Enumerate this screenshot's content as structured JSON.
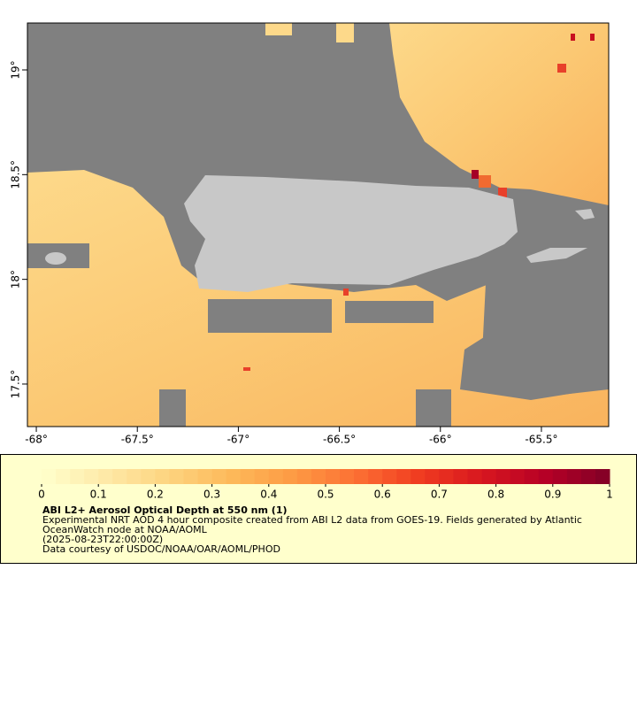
{
  "map": {
    "xlim": [
      -68.044,
      -65.167
    ],
    "ylim": [
      17.297,
      19.224
    ],
    "xticks": [
      {
        "value": -68,
        "label": "-68°"
      },
      {
        "value": -67.5,
        "label": "-67.5°"
      },
      {
        "value": -67,
        "label": "-67°"
      },
      {
        "value": -66.5,
        "label": "-66.5°"
      },
      {
        "value": -66,
        "label": "-66°"
      },
      {
        "value": -65.5,
        "label": "-65.5°"
      }
    ],
    "yticks": [
      {
        "value": 17.5,
        "label": "17.5°"
      },
      {
        "value": 18,
        "label": "18°"
      },
      {
        "value": 18.5,
        "label": "18.5°"
      },
      {
        "value": 19,
        "label": "19°"
      }
    ],
    "colorbar": {
      "lim": [
        0,
        1
      ],
      "ticks": [
        0,
        0.1,
        0.2,
        0.3,
        0.4,
        0.5,
        0.6,
        0.7,
        0.8,
        0.9,
        1
      ],
      "colors": [
        "#ffffcc",
        "#fee9a8",
        "#fdd47f",
        "#fdb95a",
        "#fd9a44",
        "#fc6f33",
        "#f03b20",
        "#d7161f",
        "#b50026",
        "#800026"
      ]
    },
    "title": "ABI L2+ Aerosol Optical Depth at 550 nm (1)",
    "description": [
      "Experimental NRT AOD 4 hour composite created from ABI L2 data from GOES-19. Fields generated by Atlantic",
      "OceanWatch node at NOAA/AOML",
      "(2025-08-23T22:00:00Z)",
      "Data courtesy of USDOC/NOAA/OAR/AOML/PHOD"
    ]
  }
}
